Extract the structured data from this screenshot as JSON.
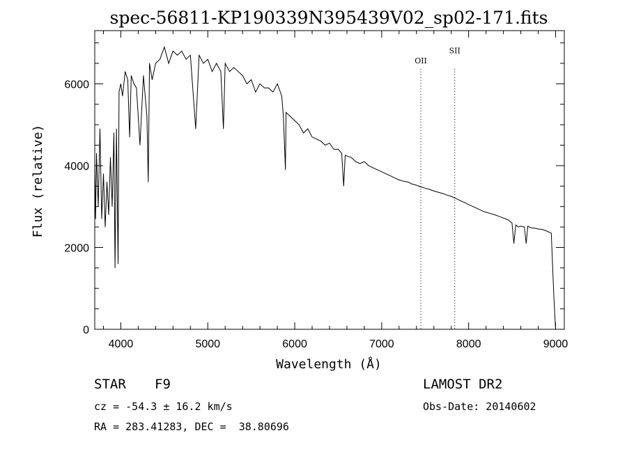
{
  "chart_data": {
    "type": "line",
    "title": "spec-56811-KP190339N395439V02_sp02-171.fits",
    "xlabel": "Wavelength (Å)",
    "ylabel": "Flux (relative)",
    "xlim": [
      3700,
      9100
    ],
    "ylim": [
      0,
      7300
    ],
    "x_ticks": [
      4000,
      5000,
      6000,
      7000,
      8000,
      9000
    ],
    "y_ticks": [
      0,
      2000,
      4000,
      6000
    ],
    "x_tick_labels": [
      "4000",
      "5000",
      "6000",
      "7000",
      "8000",
      "9000"
    ],
    "y_tick_labels": [
      "0",
      "2000",
      "4000",
      "6000"
    ],
    "grid": false,
    "series": [
      {
        "x": [
          3700,
          3710,
          3720,
          3740,
          3760,
          3780,
          3800,
          3820,
          3840,
          3860,
          3880,
          3900,
          3920,
          3933,
          3950,
          3968,
          3980,
          4000,
          4020,
          4050,
          4080,
          4101,
          4120,
          4150,
          4180,
          4220,
          4260,
          4300,
          4315,
          4330,
          4360,
          4400,
          4450,
          4500,
          4550,
          4600,
          4650,
          4700,
          4750,
          4800,
          4861,
          4900,
          4950,
          5000,
          5050,
          5100,
          5150,
          5180,
          5200,
          5250,
          5300,
          5350,
          5400,
          5450,
          5500,
          5550,
          5600,
          5650,
          5700,
          5750,
          5800,
          5850,
          5870,
          5893,
          5900,
          5950,
          6000,
          6050,
          6100,
          6150,
          6200,
          6250,
          6300,
          6350,
          6400,
          6450,
          6500,
          6540,
          6563,
          6580,
          6650,
          6700,
          6750,
          6800,
          6850,
          6900,
          6950,
          7000,
          7050,
          7100,
          7150,
          7200,
          7250,
          7300,
          7350,
          7400,
          7450,
          7500,
          7550,
          7600,
          7650,
          7700,
          7750,
          7800,
          7850,
          7900,
          7950,
          8000,
          8050,
          8100,
          8150,
          8200,
          8250,
          8300,
          8350,
          8400,
          8450,
          8498,
          8520,
          8542,
          8570,
          8600,
          8640,
          8662,
          8680,
          8720,
          8760,
          8800,
          8850,
          8900,
          8950,
          8980,
          9000
        ],
        "y": [
          4000,
          2700,
          4300,
          3000,
          4900,
          2700,
          3800,
          2500,
          3600,
          2800,
          4200,
          3000,
          4800,
          1500,
          4900,
          1600,
          5800,
          6000,
          5700,
          6300,
          6100,
          4700,
          6200,
          6000,
          5900,
          4500,
          6200,
          5200,
          3600,
          6500,
          6100,
          6500,
          6600,
          6900,
          6500,
          6800,
          6700,
          6800,
          6600,
          6700,
          4900,
          6700,
          6500,
          6600,
          6300,
          6500,
          6300,
          4900,
          6500,
          6300,
          6400,
          6300,
          6200,
          6000,
          6100,
          5800,
          6000,
          5900,
          5900,
          5800,
          6000,
          5700,
          5200,
          3900,
          5300,
          5200,
          5100,
          5000,
          4800,
          4900,
          4700,
          4650,
          4600,
          4500,
          4550,
          4400,
          4400,
          4300,
          3500,
          4250,
          4200,
          4100,
          4050,
          4100,
          4000,
          3950,
          3900,
          3850,
          3800,
          3750,
          3700,
          3650,
          3620,
          3600,
          3550,
          3520,
          3480,
          3450,
          3420,
          3380,
          3350,
          3320,
          3280,
          3250,
          3200,
          3150,
          3100,
          3050,
          3000,
          2950,
          2900,
          2860,
          2830,
          2800,
          2760,
          2720,
          2680,
          2600,
          2100,
          2550,
          2500,
          2520,
          2500,
          2100,
          2520,
          2480,
          2470,
          2450,
          2440,
          2400,
          2350,
          800,
          0
        ]
      }
    ],
    "annotations": [
      {
        "label": "OII",
        "x": 7450,
        "y": 6500
      },
      {
        "label": "SII",
        "x": 7840,
        "y": 6750
      }
    ]
  },
  "info": {
    "object_class": "STAR",
    "subclass": "F9",
    "survey": "LAMOST DR2",
    "redshift": "cz = -54.3 ± 16.2 km/s",
    "obs_date": "Obs-Date: 20140602",
    "coords": "RA = 283.41283, DEC =  38.80696"
  }
}
